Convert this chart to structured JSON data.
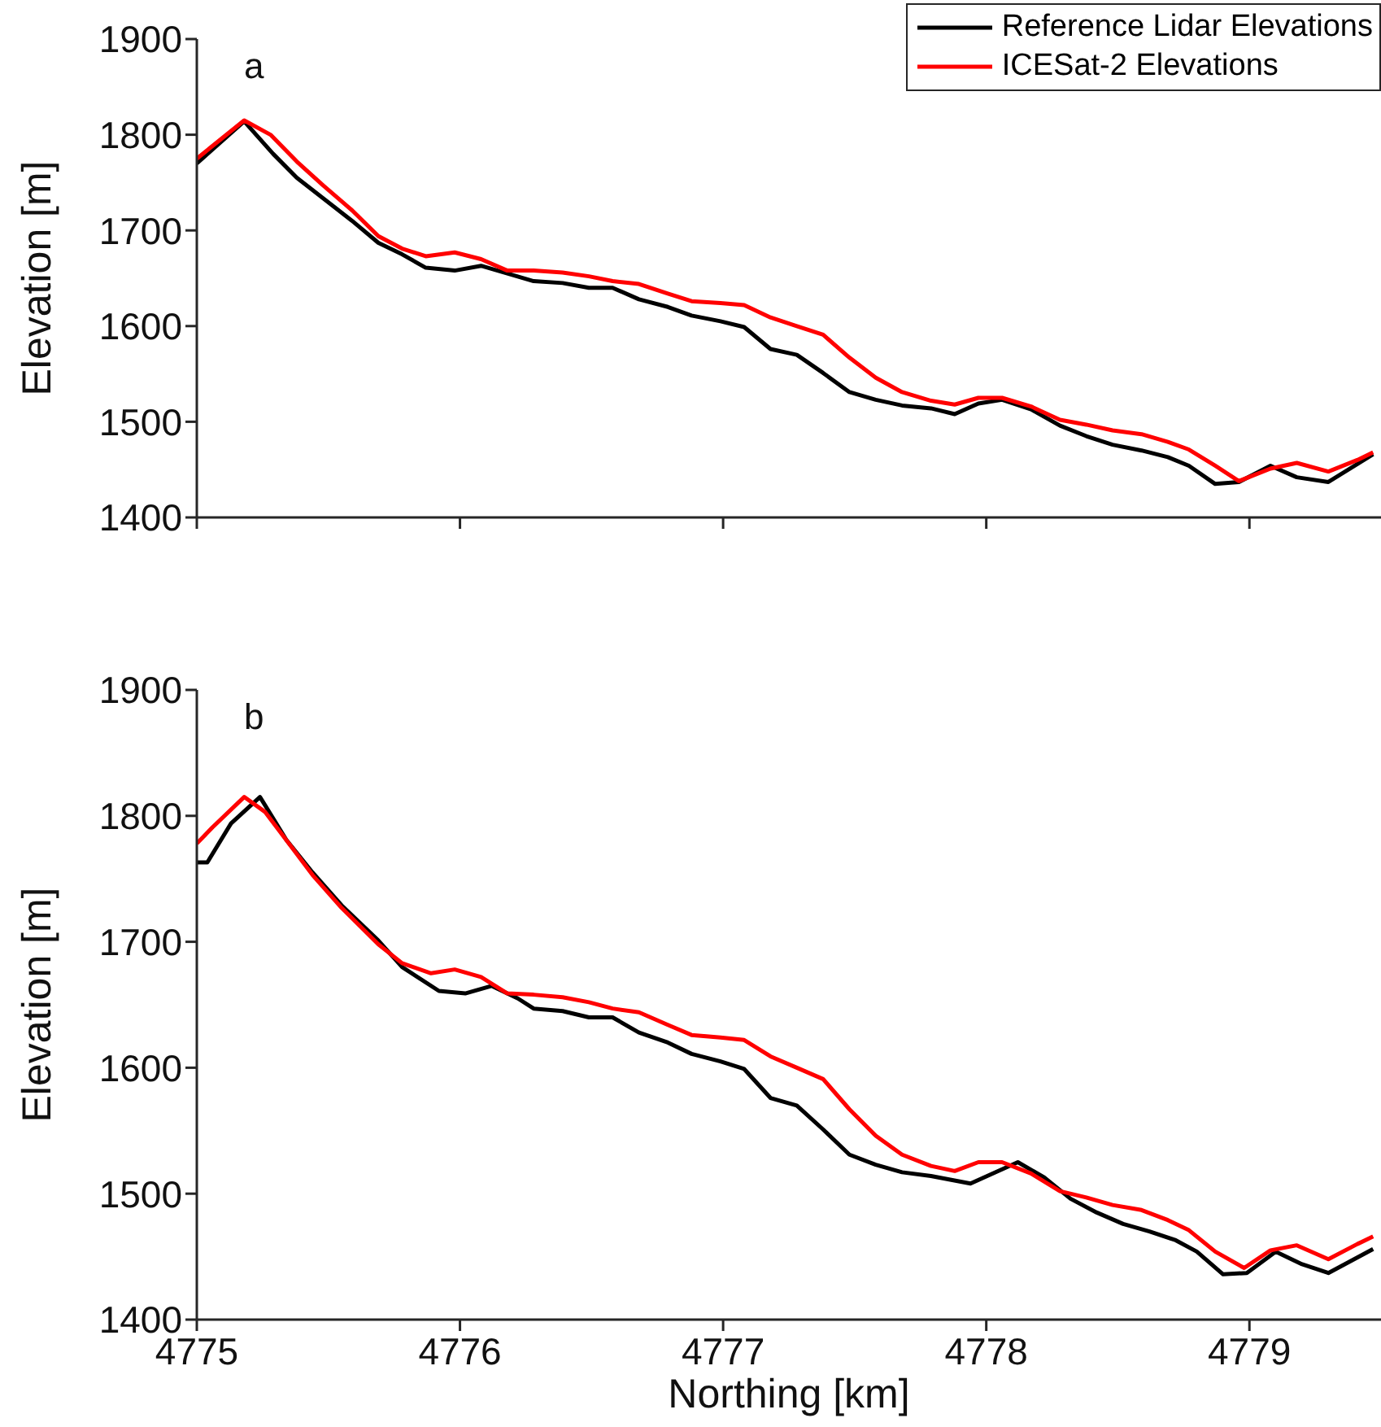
{
  "chart_data": [
    {
      "type": "line",
      "ylabel": "Elevation [m]",
      "annotations": [
        "a"
      ],
      "legend": "top right",
      "tick_labels": "y",
      "xlim": [
        4775,
        4779.5
      ],
      "xticks": [
        4775,
        4776,
        4777,
        4778,
        4779
      ],
      "ylim": [
        1400,
        1900
      ],
      "yticks": [
        1400,
        1500,
        1600,
        1700,
        1800,
        1900
      ],
      "series": [
        {
          "name": "Reference Lidar Elevations",
          "color": "#000000",
          "x": [
            4775.0,
            4775.18,
            4775.29,
            4775.38,
            4775.59,
            4775.69,
            4775.78,
            4775.87,
            4775.98,
            4776.08,
            4776.18,
            4776.28,
            4776.39,
            4776.49,
            4776.58,
            4776.68,
            4776.79,
            4776.88,
            4776.99,
            4777.08,
            4777.18,
            4777.28,
            4777.38,
            4777.48,
            4777.58,
            4777.68,
            4777.79,
            4777.88,
            4777.97,
            4778.06,
            4778.17,
            4778.28,
            4778.38,
            4778.48,
            4778.59,
            4778.69,
            4778.77,
            4778.87,
            4778.96,
            4779.08,
            4779.18,
            4779.3,
            4779.47
          ],
          "values": [
            1770,
            1814,
            1780,
            1755,
            1710,
            1687,
            1675,
            1661,
            1658,
            1663,
            1655,
            1647,
            1645,
            1640,
            1640,
            1628,
            1620,
            1611,
            1605,
            1599,
            1576,
            1570,
            1551,
            1531,
            1523,
            1517,
            1514,
            1508,
            1519,
            1523,
            1513,
            1496,
            1485,
            1476,
            1470,
            1463,
            1454,
            1435,
            1437,
            1454,
            1442,
            1437,
            1466
          ]
        },
        {
          "name": "ICESat-2 Elevations",
          "color": "#ff0000",
          "x": [
            4775.0,
            4775.18,
            4775.28,
            4775.38,
            4775.48,
            4775.59,
            4775.69,
            4775.78,
            4775.87,
            4775.98,
            4776.08,
            4776.18,
            4776.28,
            4776.39,
            4776.49,
            4776.58,
            4776.68,
            4776.79,
            4776.88,
            4776.99,
            4777.08,
            4777.18,
            4777.28,
            4777.38,
            4777.48,
            4777.58,
            4777.68,
            4777.79,
            4777.88,
            4777.97,
            4778.06,
            4778.17,
            4778.28,
            4778.38,
            4778.48,
            4778.59,
            4778.69,
            4778.77,
            4778.87,
            4778.96,
            4779.08,
            4779.18,
            4779.3,
            4779.41,
            4779.47
          ],
          "values": [
            1775,
            1815,
            1800,
            1772,
            1747,
            1721,
            1694,
            1681,
            1673,
            1677,
            1670,
            1658,
            1658,
            1656,
            1652,
            1647,
            1644,
            1634,
            1626,
            1624,
            1622,
            1609,
            1600,
            1591,
            1567,
            1546,
            1531,
            1522,
            1518,
            1525,
            1525,
            1516,
            1502,
            1497,
            1491,
            1487,
            1479,
            1471,
            1454,
            1438,
            1451,
            1457,
            1448,
            1460,
            1468
          ]
        }
      ]
    },
    {
      "type": "line",
      "xlabel": "Northing [km]",
      "ylabel": "Elevation [m]",
      "annotations": [
        "b"
      ],
      "xlim": [
        4775,
        4779.5
      ],
      "xticks": [
        4775,
        4776,
        4777,
        4778,
        4779
      ],
      "ylim": [
        1400,
        1900
      ],
      "yticks": [
        1400,
        1500,
        1600,
        1700,
        1800,
        1900
      ],
      "series": [
        {
          "color": "#000000",
          "x": [
            4775.0,
            4775.04,
            4775.13,
            4775.24,
            4775.34,
            4775.44,
            4775.55,
            4775.69,
            4775.78,
            4775.92,
            4776.02,
            4776.12,
            4776.22,
            4776.28,
            4776.39,
            4776.49,
            4776.58,
            4776.68,
            4776.79,
            4776.88,
            4776.99,
            4777.08,
            4777.18,
            4777.28,
            4777.38,
            4777.48,
            4777.58,
            4777.68,
            4777.79,
            4777.94,
            4778.12,
            4778.22,
            4778.32,
            4778.42,
            4778.52,
            4778.62,
            4778.72,
            4778.8,
            4778.9,
            4778.99,
            4779.1,
            4779.2,
            4779.3,
            4779.47
          ],
          "values": [
            1763,
            1763,
            1794,
            1815,
            1781,
            1755,
            1729,
            1701,
            1680,
            1661,
            1659,
            1665,
            1655,
            1647,
            1645,
            1640,
            1640,
            1628,
            1620,
            1611,
            1605,
            1599,
            1576,
            1570,
            1551,
            1531,
            1523,
            1517,
            1514,
            1508,
            1525,
            1513,
            1496,
            1485,
            1476,
            1470,
            1463,
            1454,
            1436,
            1437,
            1454,
            1444,
            1437,
            1456
          ]
        },
        {
          "color": "#ff0000",
          "x": [
            4775.0,
            4775.06,
            4775.18,
            4775.26,
            4775.44,
            4775.55,
            4775.69,
            4775.78,
            4775.89,
            4775.98,
            4776.08,
            4776.18,
            4776.28,
            4776.39,
            4776.49,
            4776.58,
            4776.68,
            4776.79,
            4776.88,
            4776.99,
            4777.08,
            4777.18,
            4777.28,
            4777.38,
            4777.48,
            4777.58,
            4777.68,
            4777.79,
            4777.88,
            4777.97,
            4778.06,
            4778.17,
            4778.28,
            4778.38,
            4778.48,
            4778.59,
            4778.69,
            4778.77,
            4778.87,
            4778.98,
            4779.08,
            4779.18,
            4779.3,
            4779.41,
            4779.47
          ],
          "values": [
            1778,
            1791,
            1815,
            1803,
            1753,
            1727,
            1698,
            1683,
            1675,
            1678,
            1672,
            1659,
            1658,
            1656,
            1652,
            1647,
            1644,
            1634,
            1626,
            1624,
            1622,
            1609,
            1600,
            1591,
            1567,
            1546,
            1531,
            1522,
            1518,
            1525,
            1525,
            1516,
            1502,
            1497,
            1491,
            1487,
            1479,
            1471,
            1454,
            1441,
            1455,
            1459,
            1448,
            1460,
            1466
          ]
        }
      ]
    }
  ]
}
